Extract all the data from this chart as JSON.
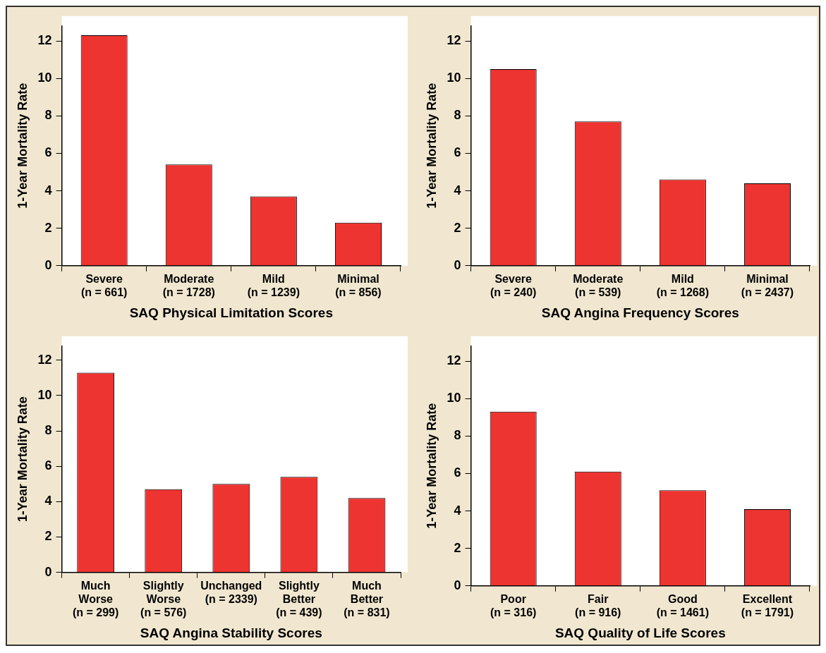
{
  "chart_data": [
    {
      "type": "bar",
      "xlabel": "SAQ Physical Limitation Scores",
      "ylabel": "1-Year Mortality Rate",
      "categories": [
        "Severe\n(n = 661)",
        "Moderate\n(n = 1728)",
        "Mild\n(n = 1239)",
        "Minimal\n(n = 856)"
      ],
      "values": [
        12.3,
        5.4,
        3.7,
        2.3
      ],
      "color": "#ee3430",
      "ylim": [
        0,
        12.8
      ],
      "yticks": [
        0,
        2,
        4,
        6,
        8,
        10,
        12
      ],
      "grid": false,
      "legend": false
    },
    {
      "type": "bar",
      "xlabel": "SAQ Angina Frequency Scores",
      "ylabel": "1-Year Mortality Rate",
      "categories": [
        "Severe\n(n = 240)",
        "Moderate\n(n = 539)",
        "Mild\n(n = 1268)",
        "Minimal\n(n = 2437)"
      ],
      "values": [
        10.5,
        7.7,
        4.6,
        4.4
      ],
      "color": "#ee3430",
      "ylim": [
        0,
        12.8
      ],
      "yticks": [
        0,
        2,
        4,
        6,
        8,
        10,
        12
      ],
      "grid": false,
      "legend": false
    },
    {
      "type": "bar",
      "xlabel": "SAQ Angina Stability Scores",
      "ylabel": "1-Year Mortality Rate",
      "categories": [
        "Much\nWorse\n(n = 299)",
        "Slightly\nWorse\n(n = 576)",
        "Unchanged\n(n = 2339)",
        "Slightly\nBetter\n(n = 439)",
        "Much\nBetter\n(n = 831)"
      ],
      "values": [
        11.3,
        4.7,
        5.0,
        5.4,
        4.2
      ],
      "color": "#ee3430",
      "ylim": [
        0,
        12.8
      ],
      "yticks": [
        0,
        2,
        4,
        6,
        8,
        10,
        12
      ],
      "grid": false,
      "legend": false
    },
    {
      "type": "bar",
      "xlabel": "SAQ Quality of Life Scores",
      "ylabel": "1-Year Mortality Rate",
      "categories": [
        "Poor\n(n = 316)",
        "Fair\n(n = 916)",
        "Good\n(n = 1461)",
        "Excellent\n(n = 1791)"
      ],
      "values": [
        9.3,
        6.1,
        5.1,
        4.1
      ],
      "color": "#ee3430",
      "ylim": [
        0,
        12.8
      ],
      "yticks": [
        0,
        2,
        4,
        6,
        8,
        10,
        12
      ],
      "grid": false,
      "legend": false
    }
  ]
}
